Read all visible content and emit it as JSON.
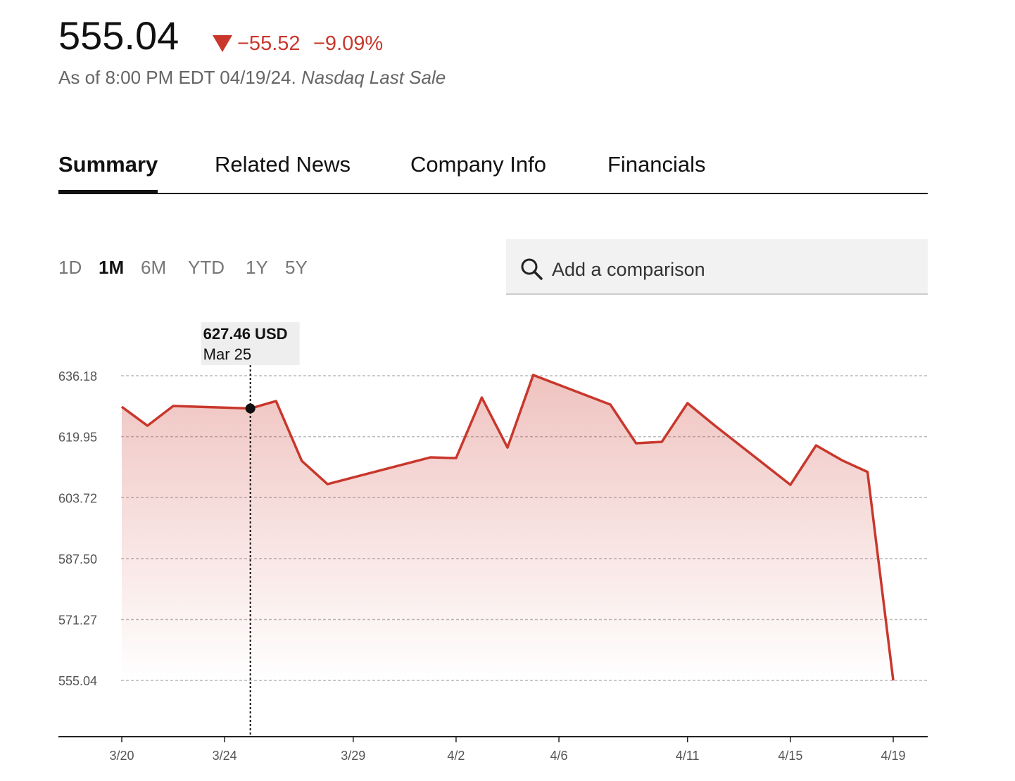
{
  "header": {
    "price": "555.04",
    "change": "−55.52",
    "change_pct": "−9.09%",
    "as_of": "As of 8:00 PM EDT 04/19/24.",
    "source": "Nasdaq Last Sale"
  },
  "tabs": [
    "Summary",
    "Related News",
    "Company Info",
    "Financials"
  ],
  "active_tab": 0,
  "ranges": [
    "1D",
    "1M",
    "6M",
    "YTD",
    "1Y",
    "5Y"
  ],
  "active_range": 1,
  "search_placeholder": "Add a comparison",
  "chart_data": {
    "type": "line",
    "color": "#c9372c",
    "grid": true,
    "x": [
      "3/20",
      "3/21",
      "3/22",
      "3/25",
      "3/26",
      "3/27",
      "3/28",
      "4/1",
      "4/2",
      "4/3",
      "4/4",
      "4/5",
      "4/8",
      "4/9",
      "4/10",
      "4/11",
      "4/12",
      "4/15",
      "4/16",
      "4/17",
      "4/18",
      "4/19"
    ],
    "values": [
      627.9,
      622.87,
      628.12,
      627.46,
      629.43,
      613.5,
      607.32,
      614.44,
      614.25,
      630.37,
      617.06,
      636.37,
      628.5,
      618.19,
      618.56,
      628.87,
      623.25,
      607.13,
      617.63,
      613.69,
      610.56,
      555.04
    ],
    "xticks": [
      "3/20",
      "3/24",
      "3/29",
      "4/2",
      "4/6",
      "4/11",
      "4/15",
      "4/19"
    ],
    "ylim": [
      540.07,
      643
    ],
    "yticks": [
      555.04,
      571.27,
      {
        "value": 587.5,
        "label": "587.50"
      },
      603.72,
      619.95,
      636.18
    ],
    "tooltip": {
      "index": 3,
      "label": "627.46 USD",
      "date": "Mar 25"
    }
  }
}
